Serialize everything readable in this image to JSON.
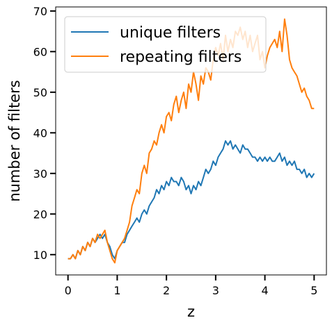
{
  "chart_data": {
    "type": "line",
    "title": "",
    "xlabel": "z",
    "ylabel": "number of filters",
    "xlim": [
      -0.25,
      5.25
    ],
    "ylim": [
      5,
      71
    ],
    "xticks": [
      0,
      1,
      2,
      3,
      4,
      5
    ],
    "yticks": [
      10,
      20,
      30,
      40,
      50,
      60,
      70
    ],
    "grid": false,
    "legend_position": "top-left",
    "series": [
      {
        "name": "unique filters",
        "color": "#1f77b4",
        "x": [
          0.0,
          0.05,
          0.1,
          0.15,
          0.2,
          0.25,
          0.3,
          0.35,
          0.4,
          0.45,
          0.5,
          0.55,
          0.6,
          0.65,
          0.7,
          0.75,
          0.8,
          0.85,
          0.9,
          0.95,
          1.0,
          1.05,
          1.1,
          1.15,
          1.2,
          1.25,
          1.3,
          1.35,
          1.4,
          1.45,
          1.5,
          1.55,
          1.6,
          1.65,
          1.7,
          1.75,
          1.8,
          1.85,
          1.9,
          1.95,
          2.0,
          2.05,
          2.1,
          2.15,
          2.2,
          2.25,
          2.3,
          2.35,
          2.4,
          2.45,
          2.5,
          2.55,
          2.6,
          2.65,
          2.7,
          2.75,
          2.8,
          2.85,
          2.9,
          2.95,
          3.0,
          3.05,
          3.1,
          3.15,
          3.2,
          3.25,
          3.3,
          3.35,
          3.4,
          3.45,
          3.5,
          3.55,
          3.6,
          3.65,
          3.7,
          3.75,
          3.8,
          3.85,
          3.9,
          3.95,
          4.0,
          4.05,
          4.1,
          4.15,
          4.2,
          4.25,
          4.3,
          4.35,
          4.4,
          4.45,
          4.5,
          4.55,
          4.6,
          4.65,
          4.7,
          4.75,
          4.8,
          4.85,
          4.9,
          4.95,
          5.0
        ],
        "values": [
          9,
          9,
          10,
          9,
          11,
          10,
          12,
          11,
          13,
          12,
          14,
          13,
          14,
          15,
          14,
          15,
          13,
          12,
          10,
          9,
          11,
          12,
          13,
          13,
          15,
          16,
          17,
          18,
          19,
          18,
          20,
          21,
          20,
          22,
          23,
          24,
          26,
          25,
          27,
          26,
          28,
          27,
          29,
          28,
          28,
          27,
          29,
          28,
          26,
          27,
          25,
          27,
          26,
          28,
          27,
          29,
          31,
          30,
          31,
          33,
          32,
          34,
          35,
          36,
          38,
          37,
          38,
          36,
          37,
          36,
          35,
          37,
          36,
          36,
          35,
          34,
          34,
          33,
          34,
          33,
          34,
          33,
          34,
          33,
          33,
          34,
          35,
          33,
          34,
          32,
          33,
          32,
          33,
          31,
          31,
          30,
          31,
          29,
          30,
          29,
          30
        ]
      },
      {
        "name": "repeating filters",
        "color": "#ff7f0e",
        "x": [
          0.0,
          0.05,
          0.1,
          0.15,
          0.2,
          0.25,
          0.3,
          0.35,
          0.4,
          0.45,
          0.5,
          0.55,
          0.6,
          0.65,
          0.7,
          0.75,
          0.8,
          0.85,
          0.9,
          0.95,
          1.0,
          1.05,
          1.1,
          1.15,
          1.2,
          1.25,
          1.3,
          1.35,
          1.4,
          1.45,
          1.5,
          1.55,
          1.6,
          1.65,
          1.7,
          1.75,
          1.8,
          1.85,
          1.9,
          1.95,
          2.0,
          2.05,
          2.1,
          2.15,
          2.2,
          2.25,
          2.3,
          2.35,
          2.4,
          2.45,
          2.5,
          2.55,
          2.6,
          2.65,
          2.7,
          2.75,
          2.8,
          2.85,
          2.9,
          2.95,
          3.0,
          3.05,
          3.1,
          3.15,
          3.2,
          3.25,
          3.3,
          3.35,
          3.4,
          3.45,
          3.5,
          3.55,
          3.6,
          3.65,
          3.7,
          3.75,
          3.8,
          3.85,
          3.9,
          3.95,
          4.0,
          4.05,
          4.1,
          4.15,
          4.2,
          4.25,
          4.3,
          4.35,
          4.4,
          4.45,
          4.5,
          4.55,
          4.6,
          4.65,
          4.7,
          4.75,
          4.8,
          4.85,
          4.9,
          4.95,
          5.0
        ],
        "values": [
          9,
          9,
          10,
          9,
          11,
          10,
          12,
          11,
          13,
          12,
          14,
          13,
          15,
          14,
          15,
          16,
          13,
          11,
          9,
          8,
          11,
          12,
          13,
          14,
          16,
          18,
          22,
          24,
          26,
          25,
          30,
          32,
          30,
          35,
          36,
          38,
          37,
          40,
          42,
          40,
          44,
          45,
          43,
          47,
          49,
          45,
          48,
          50,
          46,
          52,
          50,
          55,
          52,
          48,
          54,
          52,
          56,
          55,
          53,
          58,
          61,
          59,
          62,
          58,
          64,
          60,
          63,
          61,
          65,
          64,
          66,
          63,
          65,
          61,
          64,
          60,
          62,
          64,
          58,
          60,
          56,
          59,
          61,
          62,
          63,
          61,
          65,
          60,
          68,
          64,
          58,
          56,
          55,
          54,
          52,
          50,
          51,
          49,
          48,
          46,
          46
        ]
      }
    ]
  }
}
